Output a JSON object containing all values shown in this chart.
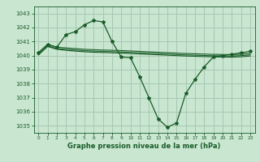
{
  "title": "Graphe pression niveau de la mer (hPa)",
  "x_labels": [
    "0",
    "1",
    "2",
    "3",
    "4",
    "5",
    "6",
    "7",
    "8",
    "9",
    "10",
    "11",
    "12",
    "13",
    "14",
    "15",
    "16",
    "17",
    "18",
    "19",
    "20",
    "21",
    "22",
    "23"
  ],
  "ylim": [
    1034.5,
    1043.5
  ],
  "yticks": [
    1035,
    1036,
    1037,
    1038,
    1039,
    1040,
    1041,
    1042,
    1043
  ],
  "bg_color": "#c8e6d0",
  "grid_color": "#a8c8b4",
  "line_color": "#1a5c28",
  "series_main": [
    1040.2,
    1040.8,
    1040.6,
    1041.5,
    1041.7,
    1042.2,
    1042.5,
    1042.4,
    1041.0,
    1039.9,
    1039.85,
    1038.5,
    1037.0,
    1035.5,
    1034.9,
    1035.2,
    1037.3,
    1038.3,
    1039.2,
    1039.9,
    1040.0,
    1040.1,
    1040.2,
    1040.3
  ],
  "series_flat1": [
    1040.2,
    1040.8,
    1040.6,
    1040.55,
    1040.5,
    1040.45,
    1040.42,
    1040.4,
    1040.38,
    1040.36,
    1040.33,
    1040.3,
    1040.27,
    1040.24,
    1040.21,
    1040.18,
    1040.15,
    1040.13,
    1040.11,
    1040.09,
    1040.08,
    1040.07,
    1040.1,
    1040.15
  ],
  "series_flat2": [
    1040.1,
    1040.7,
    1040.5,
    1040.45,
    1040.4,
    1040.35,
    1040.32,
    1040.3,
    1040.28,
    1040.26,
    1040.23,
    1040.2,
    1040.17,
    1040.14,
    1040.11,
    1040.08,
    1040.05,
    1040.03,
    1040.01,
    1039.99,
    1039.98,
    1039.97,
    1040.0,
    1040.05
  ],
  "series_flat3": [
    1040.05,
    1040.65,
    1040.45,
    1040.38,
    1040.32,
    1040.27,
    1040.24,
    1040.22,
    1040.2,
    1040.18,
    1040.15,
    1040.12,
    1040.09,
    1040.06,
    1040.03,
    1040.0,
    1039.97,
    1039.95,
    1039.93,
    1039.91,
    1039.9,
    1039.89,
    1039.92,
    1039.97
  ]
}
